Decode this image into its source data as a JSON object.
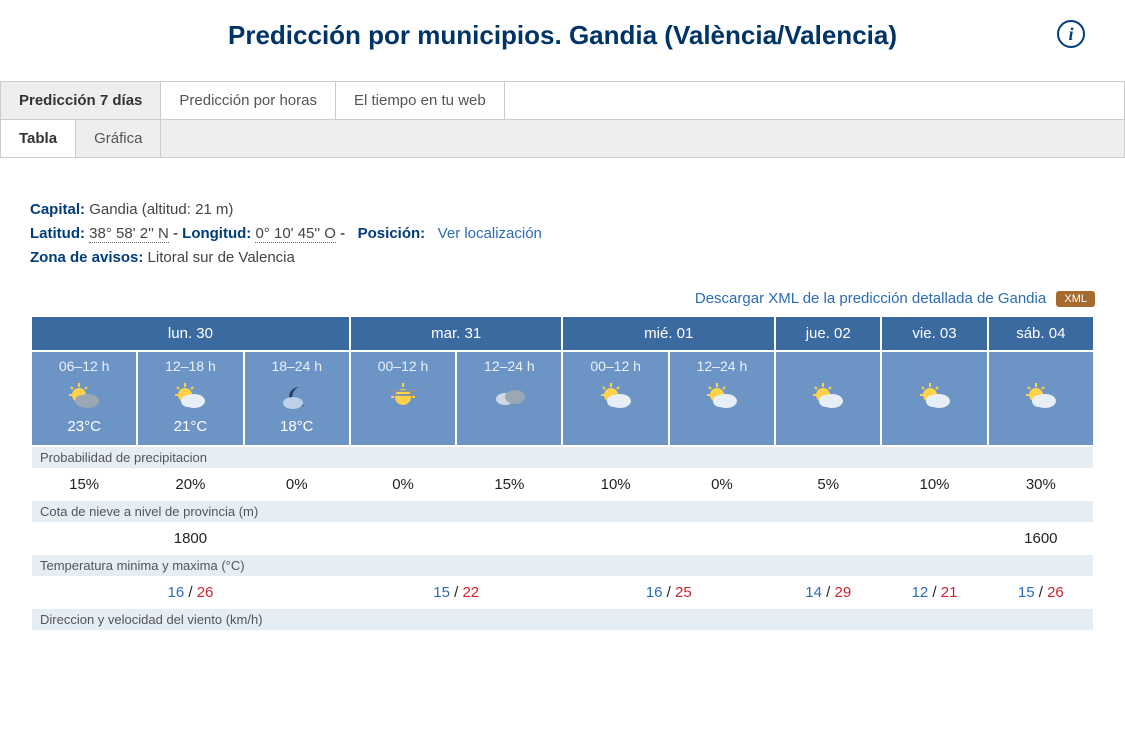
{
  "title": "Predicción por municipios. Gandia (València/Valencia)",
  "tabs1": [
    {
      "label": "Predicción 7 días",
      "active": true
    },
    {
      "label": "Predicción por horas",
      "active": false
    },
    {
      "label": "El tiempo en tu web",
      "active": false
    }
  ],
  "tabs2": [
    {
      "label": "Tabla",
      "active": true
    },
    {
      "label": "Gráfica",
      "active": false
    }
  ],
  "meta": {
    "capital_label": "Capital",
    "capital_val": "Gandia (altitud: 21 m)",
    "lat_label": "Latitud",
    "lat_val": "38° 58' 2'' N",
    "lon_label": "Longitud",
    "lon_val": "0° 10' 45'' O",
    "pos_label": "Posición",
    "pos_link": "Ver localización",
    "zone_label": "Zona de avisos",
    "zone_val": "Litoral sur de Valencia"
  },
  "xml_text": "Descargar XML de la predicción detallada de Gandia",
  "xml_badge": "XML",
  "days": [
    {
      "label": "lun. 30",
      "span": 3
    },
    {
      "label": "mar. 31",
      "span": 2
    },
    {
      "label": "mié. 01",
      "span": 2
    },
    {
      "label": "jue. 02",
      "span": 1
    },
    {
      "label": "vie. 03",
      "span": 1
    },
    {
      "label": "sáb. 04",
      "span": 1
    }
  ],
  "periods": [
    {
      "hours": "06–12 h",
      "icon": "sun-cloud-gray",
      "temp": "23°C"
    },
    {
      "hours": "12–18 h",
      "icon": "sun-cloud",
      "temp": "21°C"
    },
    {
      "hours": "18–24 h",
      "icon": "moon-cloud",
      "temp": "18°C"
    },
    {
      "hours": "00–12 h",
      "icon": "sun-fog",
      "temp": ""
    },
    {
      "hours": "12–24 h",
      "icon": "clouds",
      "temp": ""
    },
    {
      "hours": "00–12 h",
      "icon": "sun-cloud",
      "temp": ""
    },
    {
      "hours": "12–24 h",
      "icon": "sun-cloud",
      "temp": ""
    },
    {
      "hours": "",
      "icon": "sun-cloud",
      "temp": ""
    },
    {
      "hours": "",
      "icon": "sun-cloud",
      "temp": ""
    },
    {
      "hours": "",
      "icon": "sun-cloud",
      "temp": ""
    }
  ],
  "sections": {
    "precip_label": "Probabilidad de precipitacion",
    "precip": [
      "15%",
      "20%",
      "0%",
      "0%",
      "15%",
      "10%",
      "0%",
      "5%",
      "10%",
      "30%"
    ],
    "snow_label": "Cota de nieve a nivel de provincia (m)",
    "snow": [
      "",
      "1800",
      "",
      "",
      "",
      "",
      "",
      "",
      "",
      "1600"
    ],
    "temp_label": "Temperatura minima y maxima (°C)",
    "temp": [
      {
        "span": 3,
        "min": "16",
        "max": "26"
      },
      {
        "span": 2,
        "min": "15",
        "max": "22"
      },
      {
        "span": 2,
        "min": "16",
        "max": "25"
      },
      {
        "span": 1,
        "min": "14",
        "max": "29"
      },
      {
        "span": 1,
        "min": "12",
        "max": "21"
      },
      {
        "span": 1,
        "min": "15",
        "max": "26"
      }
    ],
    "wind_label": "Direccion y velocidad del viento (km/h)"
  },
  "colors": {
    "header_blue": "#3b6aa0",
    "cell_blue": "#6c94c5",
    "section_bg": "#e5edf5",
    "brand_blue": "#003d7a",
    "link_blue": "#2a6cb5",
    "xml_badge": "#a66a2e",
    "tmax": "#cc2233"
  }
}
